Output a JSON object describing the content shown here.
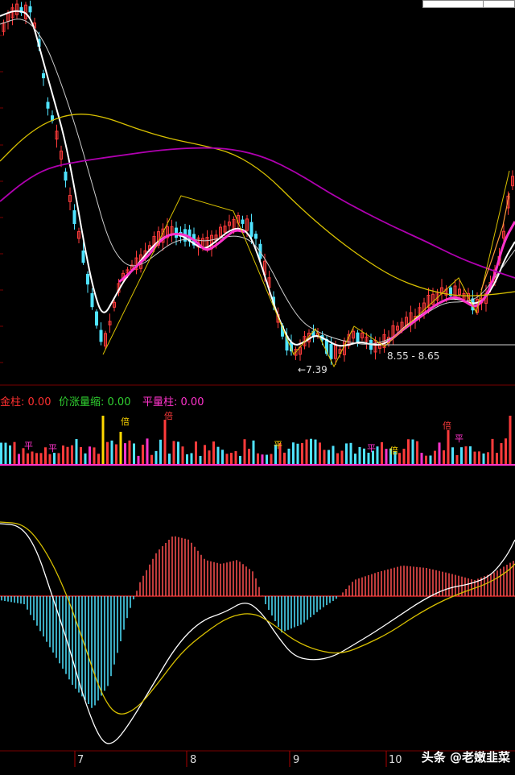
{
  "chart_data": [
    {
      "type": "candlestick",
      "panel": "price",
      "annotations": {
        "low_label": "7.39",
        "range_label": "8.55 - 8.65"
      },
      "moving_averages": [
        "white",
        "magenta-short",
        "yellow",
        "purple",
        "orange"
      ],
      "colors": {
        "up": "#ff3b3b",
        "down": "#4fe3ff",
        "ma_white": "#ffffff",
        "ma_pink": "#ff33cc",
        "ma_yellow": "#d8c000",
        "ma_purple": "#b000b0",
        "ma_orange": "#ff9a3c"
      }
    },
    {
      "type": "bar",
      "panel": "volume",
      "legend": [
        {
          "name": "金柱",
          "value": "0.00",
          "color": "#ff3030"
        },
        {
          "name": "价涨量缩",
          "value": "0.00",
          "color": "#30d030"
        },
        {
          "name": "平量柱",
          "value": "0.00",
          "color": "#ff33cc"
        }
      ],
      "markers": [
        "倍",
        "平"
      ],
      "colors": {
        "up": "#ff3b3b",
        "down": "#4fe3ff",
        "flat": "#ff33cc",
        "gold": "#ffd800"
      }
    },
    {
      "type": "bar",
      "panel": "macd",
      "lines": [
        "DIF (white)",
        "DEA (yellow)"
      ],
      "colors": {
        "pos_hist": "#ff5050",
        "neg_hist": "#4fe3ff",
        "dif": "#ffffff",
        "dea": "#d8c000",
        "zero": "#ff3030"
      }
    }
  ],
  "xaxis": {
    "months": [
      "7",
      "8",
      "9",
      "10"
    ]
  },
  "watermark": "头条 @老嫩韭菜"
}
